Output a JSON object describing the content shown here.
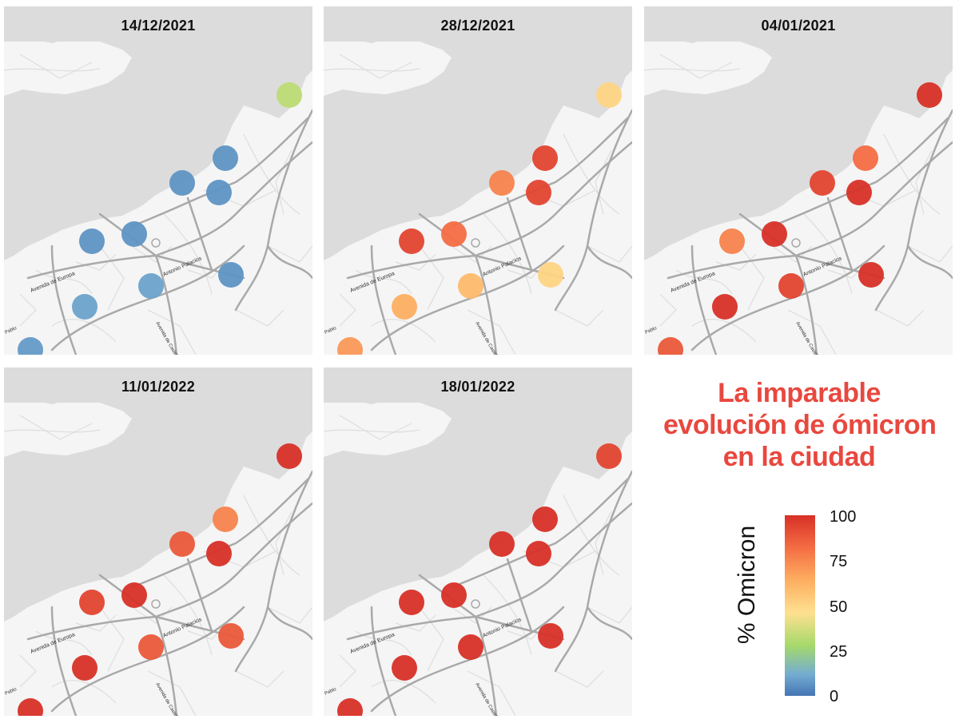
{
  "title": {
    "lines": [
      "La imparable",
      "evolución de ómicron",
      "en la ciudad"
    ],
    "color": "#e8483f"
  },
  "panels": [
    {
      "date": "14/12/2021",
      "values": [
        35,
        8,
        8,
        8,
        8,
        8,
        8,
        12,
        12,
        10
      ]
    },
    {
      "date": "28/12/2021",
      "values": [
        55,
        95,
        80,
        95,
        95,
        85,
        55,
        65,
        70,
        75
      ]
    },
    {
      "date": "04/01/2021",
      "values": [
        100,
        85,
        95,
        100,
        80,
        100,
        100,
        95,
        100,
        90
      ]
    },
    {
      "date": "11/01/2022",
      "values": [
        100,
        80,
        90,
        100,
        95,
        100,
        90,
        90,
        100,
        100
      ]
    },
    {
      "date": "18/01/2022",
      "values": [
        95,
        100,
        100,
        100,
        100,
        100,
        100,
        100,
        100,
        100
      ]
    }
  ],
  "legend": {
    "label": "% Omicron",
    "ticks": [
      "100",
      "75",
      "50",
      "25",
      "0"
    ],
    "colors": [
      "#d73027",
      "#f46d43",
      "#fdae61",
      "#fee090",
      "#a6d96a",
      "#74add1",
      "#4575b4"
    ]
  },
  "streets": {
    "avenida_europa": "Avenida de Europa",
    "antonio_palacios": "Antonio Palacios",
    "castelao": "Avenida de Castelao",
    "edge": "Pablo"
  },
  "colors": {
    "map_land": "#f5f5f5",
    "map_water": "#dcdcdc",
    "map_road_main": "#a9a9a9",
    "map_road_minor": "#dddddd"
  }
}
